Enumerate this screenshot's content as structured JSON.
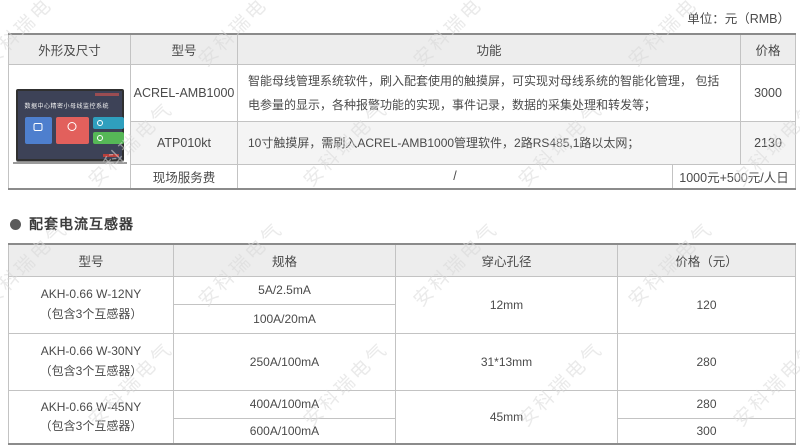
{
  "unit_label": "单位：元（RMB）",
  "watermark": {
    "text": "安科瑞电气"
  },
  "product_table": {
    "headers": {
      "appearance": "外形及尺寸",
      "model": "型号",
      "function": "功能",
      "price": "价格"
    },
    "device_screen": {
      "title": "数据中心精密小母线监控系统"
    },
    "rows": [
      {
        "model": "ACREL-AMB1000",
        "function": "智能母线管理系统软件，刷入配套使用的触摸屏，可实现对母线系统的智能化管理， 包括电参量的显示，各种报警功能的实现，事件记录，数据的采集处理和转发等；",
        "price": "3000"
      },
      {
        "model": "ATP010kt",
        "function": "10寸触摸屏，需刷入ACREL-AMB1000管理软件，2路RS485,1路以太网；",
        "price": "2130"
      }
    ],
    "service_row": {
      "label": "现场服务费",
      "function": "/",
      "price": "1000元+500元/人日"
    }
  },
  "section2": {
    "title": "配套电流互感器",
    "table": {
      "headers": {
        "model": "型号",
        "spec": "规格",
        "hole": "穿心孔径",
        "price": "价格（元）"
      },
      "rows": [
        {
          "model": "AKH-0.66 W-12NY",
          "note": "（包含3个互感器）",
          "specs": [
            "5A/2.5mA",
            "100A/20mA"
          ],
          "hole": "12mm",
          "prices": [
            "120"
          ]
        },
        {
          "model": "AKH-0.66 W-30NY",
          "note": "（包含3个互感器）",
          "specs": [
            "250A/100mA"
          ],
          "hole": "31*13mm",
          "prices": [
            "280"
          ]
        },
        {
          "model": "AKH-0.66 W-45NY",
          "note": "（包含3个互感器）",
          "specs": [
            "400A/100mA",
            "600A/100mA"
          ],
          "hole": "45mm",
          "prices": [
            "280",
            "300"
          ]
        }
      ]
    }
  }
}
